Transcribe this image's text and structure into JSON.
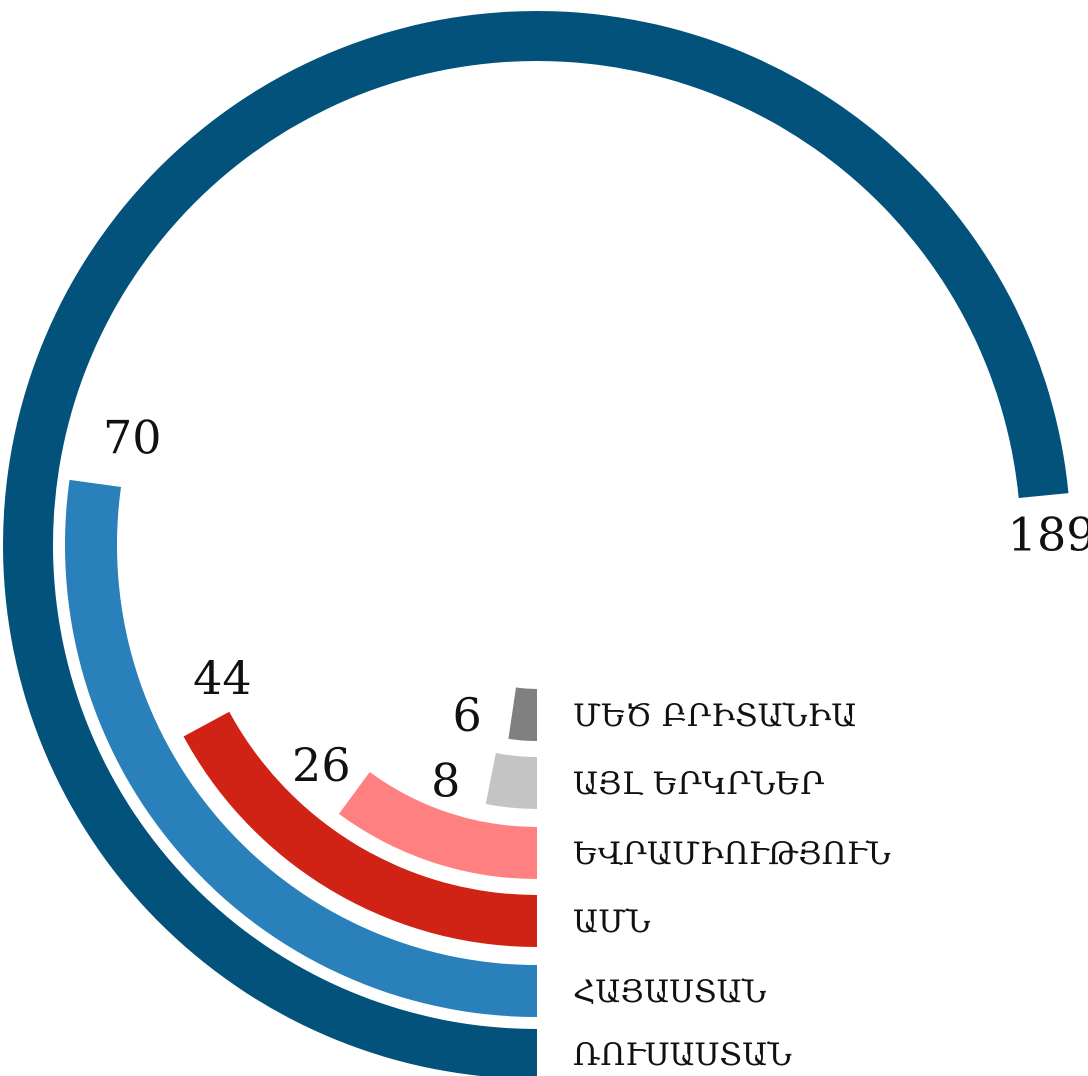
{
  "chart_data": {
    "type": "radial_bar",
    "max_value": 189,
    "series": [
      {
        "category": "ՌՈՒՍԱՍՏԱՆ",
        "value": 189,
        "color": "#02527c"
      },
      {
        "category": "ՀԱՅԱՍՏԱՆ",
        "value": 70,
        "color": "#2980ba"
      },
      {
        "category": "ԱՄՆ",
        "value": 44,
        "color": "#d02215"
      },
      {
        "category": "ԵՎՐԱՄԻՈՒԹՅՈՒՆ",
        "value": 26,
        "color": "#ff8080"
      },
      {
        "category": "ՄԵԾ ԲՐԻՏԱՆԻԱ",
        "value": 6,
        "color": "#808080"
      },
      {
        "category": "ԱՅԼ ԵՐԿՐՆԵՐ",
        "value": 8,
        "color": "#c4c4c4"
      }
    ]
  }
}
